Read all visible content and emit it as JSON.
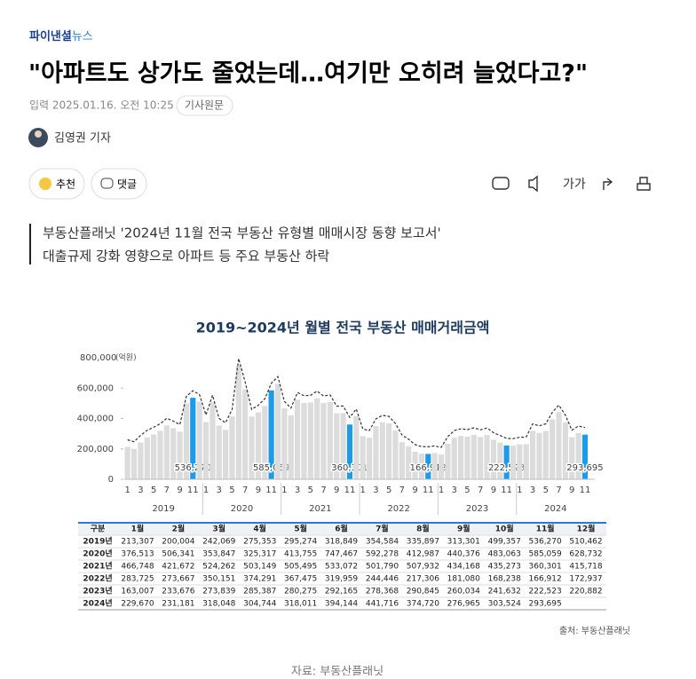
{
  "header": {
    "brand_main": "파이낸셜",
    "brand_sub": "뉴스"
  },
  "article": {
    "title": "\"아파트도 상가도 줄었는데…여기만 오히려 늘었다고?\"",
    "date": "입력 2025.01.16. 오전 10:25",
    "original_link": "기사원문",
    "author": "김영권 기자",
    "buttons": {
      "recommend": "추천",
      "comment": "댓글",
      "font": "가가"
    },
    "summary": [
      "부동산플래닛 '2024년 11월 전국 부동산 유형별 매매시장 동향 보고서'",
      "대출규제 강화 영향으로 아파트 등 주요 부동산 하락"
    ],
    "caption": "자료: 부동산플래닛"
  },
  "chart_data": {
    "type": "bar",
    "title": "2019~2024년 월별 전국 부동산 매매거래금액",
    "unit": "(억원)",
    "ylim": [
      0,
      800000
    ],
    "yticks": [
      0,
      {
        "value": 200000,
        "label": "200,000"
      },
      {
        "value": 400000,
        "label": "400,000"
      },
      {
        "value": 600000,
        "label": "600,000"
      },
      {
        "value": 800000,
        "label": "800,000"
      }
    ],
    "categories": [
      "1",
      null,
      "3",
      null,
      "5",
      null,
      "7",
      null,
      "9",
      null,
      "11",
      null
    ],
    "color": "#dcdcdc",
    "highlight_color": "#1e9be8",
    "highlight_index": 10,
    "series": [
      {
        "name": "2019",
        "values": [
          213307,
          200004,
          242069,
          275353,
          295274,
          318849,
          354584,
          335897,
          313301,
          499357,
          536270,
          510462
        ],
        "value_labels": [
          "213,307",
          "200,004",
          "242,069",
          "275,353",
          "295,274",
          "318,849",
          "354,584",
          "335,897",
          "313,301",
          "499,357",
          "536,270",
          "510,462"
        ]
      },
      {
        "name": "2020",
        "values": [
          376513,
          506341,
          353847,
          325317,
          413755,
          747467,
          592278,
          412987,
          440376,
          483063,
          585059,
          628732
        ],
        "value_labels": [
          "376,513",
          "506,341",
          "353,847",
          "325,317",
          "413,755",
          "747,467",
          "592,278",
          "412,987",
          "440,376",
          "483,063",
          "585,059",
          "628,732"
        ]
      },
      {
        "name": "2021",
        "values": [
          466748,
          421672,
          524262,
          503149,
          505495,
          533072,
          501790,
          507932,
          434168,
          435273,
          360301,
          415718
        ],
        "value_labels": [
          "466,748",
          "421,672",
          "524,262",
          "503,149",
          "505,495",
          "533,072",
          "501,790",
          "507,932",
          "434,168",
          "435,273",
          "360,301",
          "415,718"
        ]
      },
      {
        "name": "2022",
        "values": [
          283725,
          273667,
          350151,
          374291,
          367475,
          319959,
          244446,
          217306,
          181080,
          168238,
          166912,
          172937
        ],
        "value_labels": [
          "283,725",
          "273,667",
          "350,151",
          "374,291",
          "367,475",
          "319,959",
          "244,446",
          "217,306",
          "181,080",
          "168,238",
          "166,912",
          "172,937"
        ]
      },
      {
        "name": "2023",
        "values": [
          163007,
          233676,
          273839,
          285387,
          280275,
          292165,
          278368,
          290845,
          260034,
          241632,
          222523,
          220882
        ],
        "value_labels": [
          "163,007",
          "233,676",
          "273,839",
          "285,387",
          "280,275",
          "292,165",
          "278,368",
          "290,845",
          "260,034",
          "241,632",
          "222,523",
          "220,882"
        ]
      },
      {
        "name": "2024",
        "values": [
          229670,
          231181,
          318048,
          304744,
          318011,
          394144,
          441716,
          374720,
          276965,
          303524,
          293695,
          null
        ],
        "value_labels": [
          "229,670",
          "231,181",
          "318,048",
          "304,744",
          "318,011",
          "394,144",
          "441,716",
          "374,720",
          "276,965",
          "303,524",
          "293,695",
          null
        ]
      }
    ],
    "table": {
      "header": [
        "구분",
        "1월",
        "2월",
        "3월",
        "4월",
        "5월",
        "6월",
        "7월",
        "8월",
        "9월",
        "10월",
        "11월",
        "12월"
      ],
      "row_labels": [
        "2019년",
        "2020년",
        "2021년",
        "2022년",
        "2023년",
        "2024년"
      ]
    },
    "source": "출처: 부동산플래닛"
  }
}
